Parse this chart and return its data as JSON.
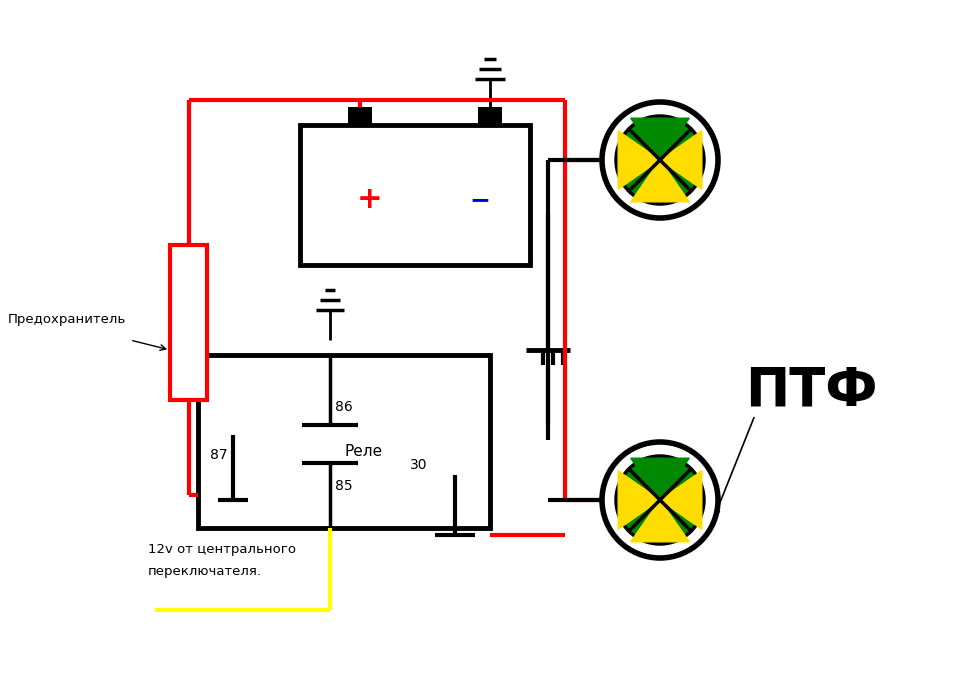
{
  "bg_color": "#ffffff",
  "red": "#ff0000",
  "blk": "#000000",
  "yel": "#ffff00",
  "blue": "#0000cc",
  "green": "#008800",
  "ylw_x": "#ffdd00",
  "text_predohranitel": "Предохранитель",
  "text_rele": "Реле",
  "text_ptf": "ПТФ",
  "text_86": "86",
  "text_87": "87",
  "text_85": "85",
  "text_30": "30",
  "text_plus": "+",
  "text_minus": "−",
  "text_12v_line1": "12v от центрального",
  "text_12v_line2": "переключателя.",
  "lw": 3.0,
  "lw_thin": 2.0
}
